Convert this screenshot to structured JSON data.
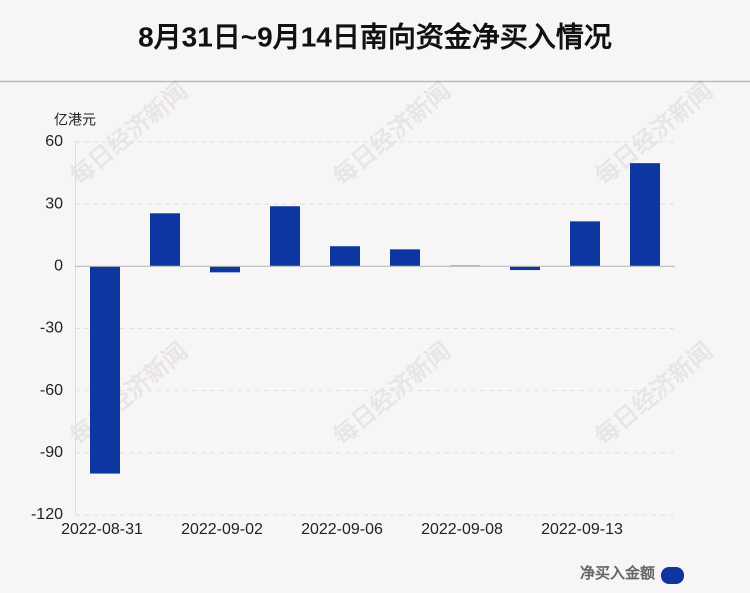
{
  "chart_data": {
    "type": "bar",
    "title": "8月31日~9月14日南向资金净买入情况",
    "y_label": "亿港元",
    "watermark": "每日经济新闻",
    "categories": [
      "2022-08-31",
      null,
      "2022-09-02",
      null,
      "2022-09-06",
      null,
      "2022-09-08",
      null,
      "2022-09-13",
      null
    ],
    "series": [
      {
        "name": "净买入金额",
        "color": "#0e36a0",
        "values": [
          -100,
          25.6,
          -2.9,
          29,
          9.7,
          8.2,
          0.4,
          -1.8,
          21.7,
          49.8
        ]
      }
    ],
    "ylim": [
      -120,
      60
    ],
    "yticks": [
      -120,
      -90,
      -60,
      -30,
      0,
      30,
      60
    ],
    "grid": true
  }
}
